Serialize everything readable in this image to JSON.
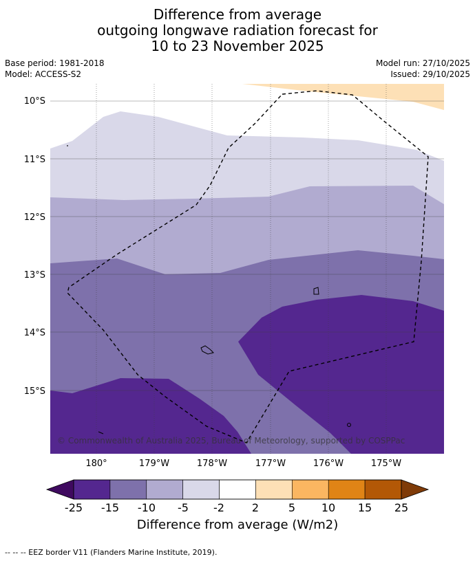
{
  "title": {
    "line1": "Difference from average",
    "line2": "outgoing longwave radiation forecast for",
    "line3": "10 to 23 November 2025"
  },
  "meta": {
    "base_period": "Base period: 1981-2018",
    "model": "Model: ACCESS-S2",
    "model_run": "Model run: 27/10/2025",
    "issued": "Issued: 29/10/2025"
  },
  "map": {
    "lat_labels": [
      "10°S",
      "11°S",
      "12°S",
      "13°S",
      "14°S",
      "15°S"
    ],
    "lon_labels": [
      "180°",
      "179°W",
      "178°W",
      "177°W",
      "176°W",
      "175°W"
    ],
    "copyright": "© Commonwealth of Australia 2025, Bureau of Meteorology, supported by COSPPac",
    "colors": {
      "band_neg25_15": "#54278f",
      "band_neg15_10": "#7e71ab",
      "band_neg10_5": "#b1abd0",
      "band_neg5_2": "#d9d8e9",
      "band_2_5": "#fde0b6",
      "gridline": "#404040",
      "eez": "#000000"
    }
  },
  "colorbar": {
    "title": "Difference from average (W/m2)",
    "labels": [
      "-25",
      "-15",
      "-10",
      "-5",
      "-2",
      "2",
      "5",
      "10",
      "15",
      "25"
    ],
    "colors": [
      "#3f0a5f",
      "#54278f",
      "#7e71ab",
      "#b1abd0",
      "#d9d8e9",
      "#ffffff",
      "#fde0b6",
      "#fbb661",
      "#e08416",
      "#b35806",
      "#7f3b08"
    ]
  },
  "footer": "--  --  -- EEZ border V11 (Flanders Marine Institute, 2019)."
}
